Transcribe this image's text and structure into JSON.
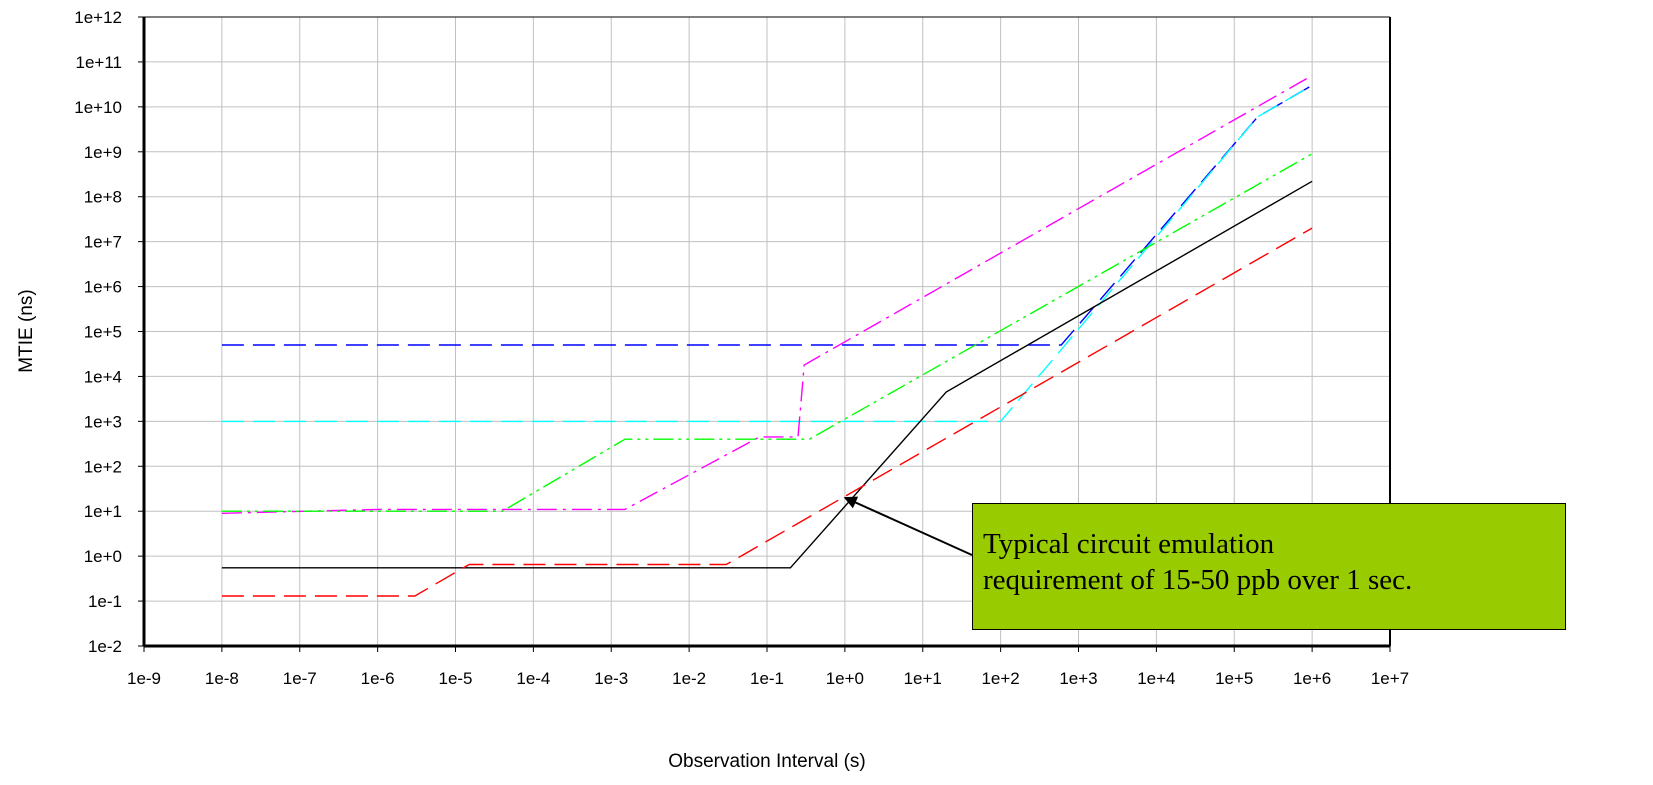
{
  "chart_data": {
    "type": "line",
    "xscale": "log",
    "yscale": "log",
    "xlim": [
      1e-09,
      10000000.0
    ],
    "ylim": [
      0.01,
      1000000000000.0
    ],
    "grid": true,
    "legend": "none",
    "xlabel": "Observation Interval (s)",
    "ylabel": "MTIE (ns)",
    "x_tick_labels": [
      "1e-9",
      "1e-8",
      "1e-7",
      "1e-6",
      "1e-5",
      "1e-4",
      "1e-3",
      "1e-2",
      "1e-1",
      "1e+0",
      "1e+1",
      "1e+2",
      "1e+3",
      "1e+4",
      "1e+5",
      "1e+6",
      "1e+7"
    ],
    "y_tick_labels": [
      "1e-2",
      "1e-1",
      "1e+0",
      "1e+1",
      "1e+2",
      "1e+3",
      "1e+4",
      "1e+5",
      "1e+6",
      "1e+7",
      "1e+8",
      "1e+9",
      "1e+10",
      "1e+11",
      "1e+12"
    ],
    "series": [
      {
        "color": "#0000ff",
        "dash": "long-dash",
        "points": [
          [
            1e-08,
            50000.0
          ],
          [
            600,
            50000.0
          ],
          [
            200000.0,
            6000000000.0
          ],
          [
            1000000.0,
            30000000000.0
          ]
        ]
      },
      {
        "color": "#00ffff",
        "dash": "long-dash",
        "points": [
          [
            1e-08,
            1000
          ],
          [
            100,
            1000
          ],
          [
            200000.0,
            6000000000.0
          ],
          [
            1000000.0,
            30000000000.0
          ]
        ]
      },
      {
        "color": "#ff00ff",
        "dash": "dash-dot",
        "points": [
          [
            1e-08,
            9
          ],
          [
            1e-06,
            11
          ],
          [
            0.0015,
            11
          ],
          [
            0.08,
            450
          ],
          [
            0.25,
            450
          ],
          [
            0.3,
            18000.0
          ],
          [
            1000000.0,
            50000000000.0
          ]
        ]
      },
      {
        "color": "#00ff00",
        "dash": "dash-dot-dot",
        "points": [
          [
            1e-08,
            10
          ],
          [
            4e-05,
            10
          ],
          [
            0.0015,
            400
          ],
          [
            0.35,
            400
          ],
          [
            1000000.0,
            900000000.0
          ]
        ]
      },
      {
        "color": "#000000",
        "dash": "solid",
        "points": [
          [
            1e-08,
            0.55
          ],
          [
            0.2,
            0.55
          ],
          [
            20,
            4500
          ],
          [
            1000000.0,
            220000000.0
          ]
        ]
      },
      {
        "color": "#ff0000",
        "dash": "long-dash",
        "points": [
          [
            1e-08,
            0.13
          ],
          [
            3e-06,
            0.13
          ],
          [
            1.5e-05,
            0.65
          ],
          [
            0.03,
            0.65
          ],
          [
            1000000.0,
            20000000.0
          ]
        ]
      }
    ],
    "annotations": [
      {
        "text_lines": [
          "Typical circuit emulation",
          "requirement of 15-50 ppb over 1 sec."
        ],
        "points_to": [
          1,
          20
        ],
        "fill": "#99cc00"
      }
    ]
  }
}
